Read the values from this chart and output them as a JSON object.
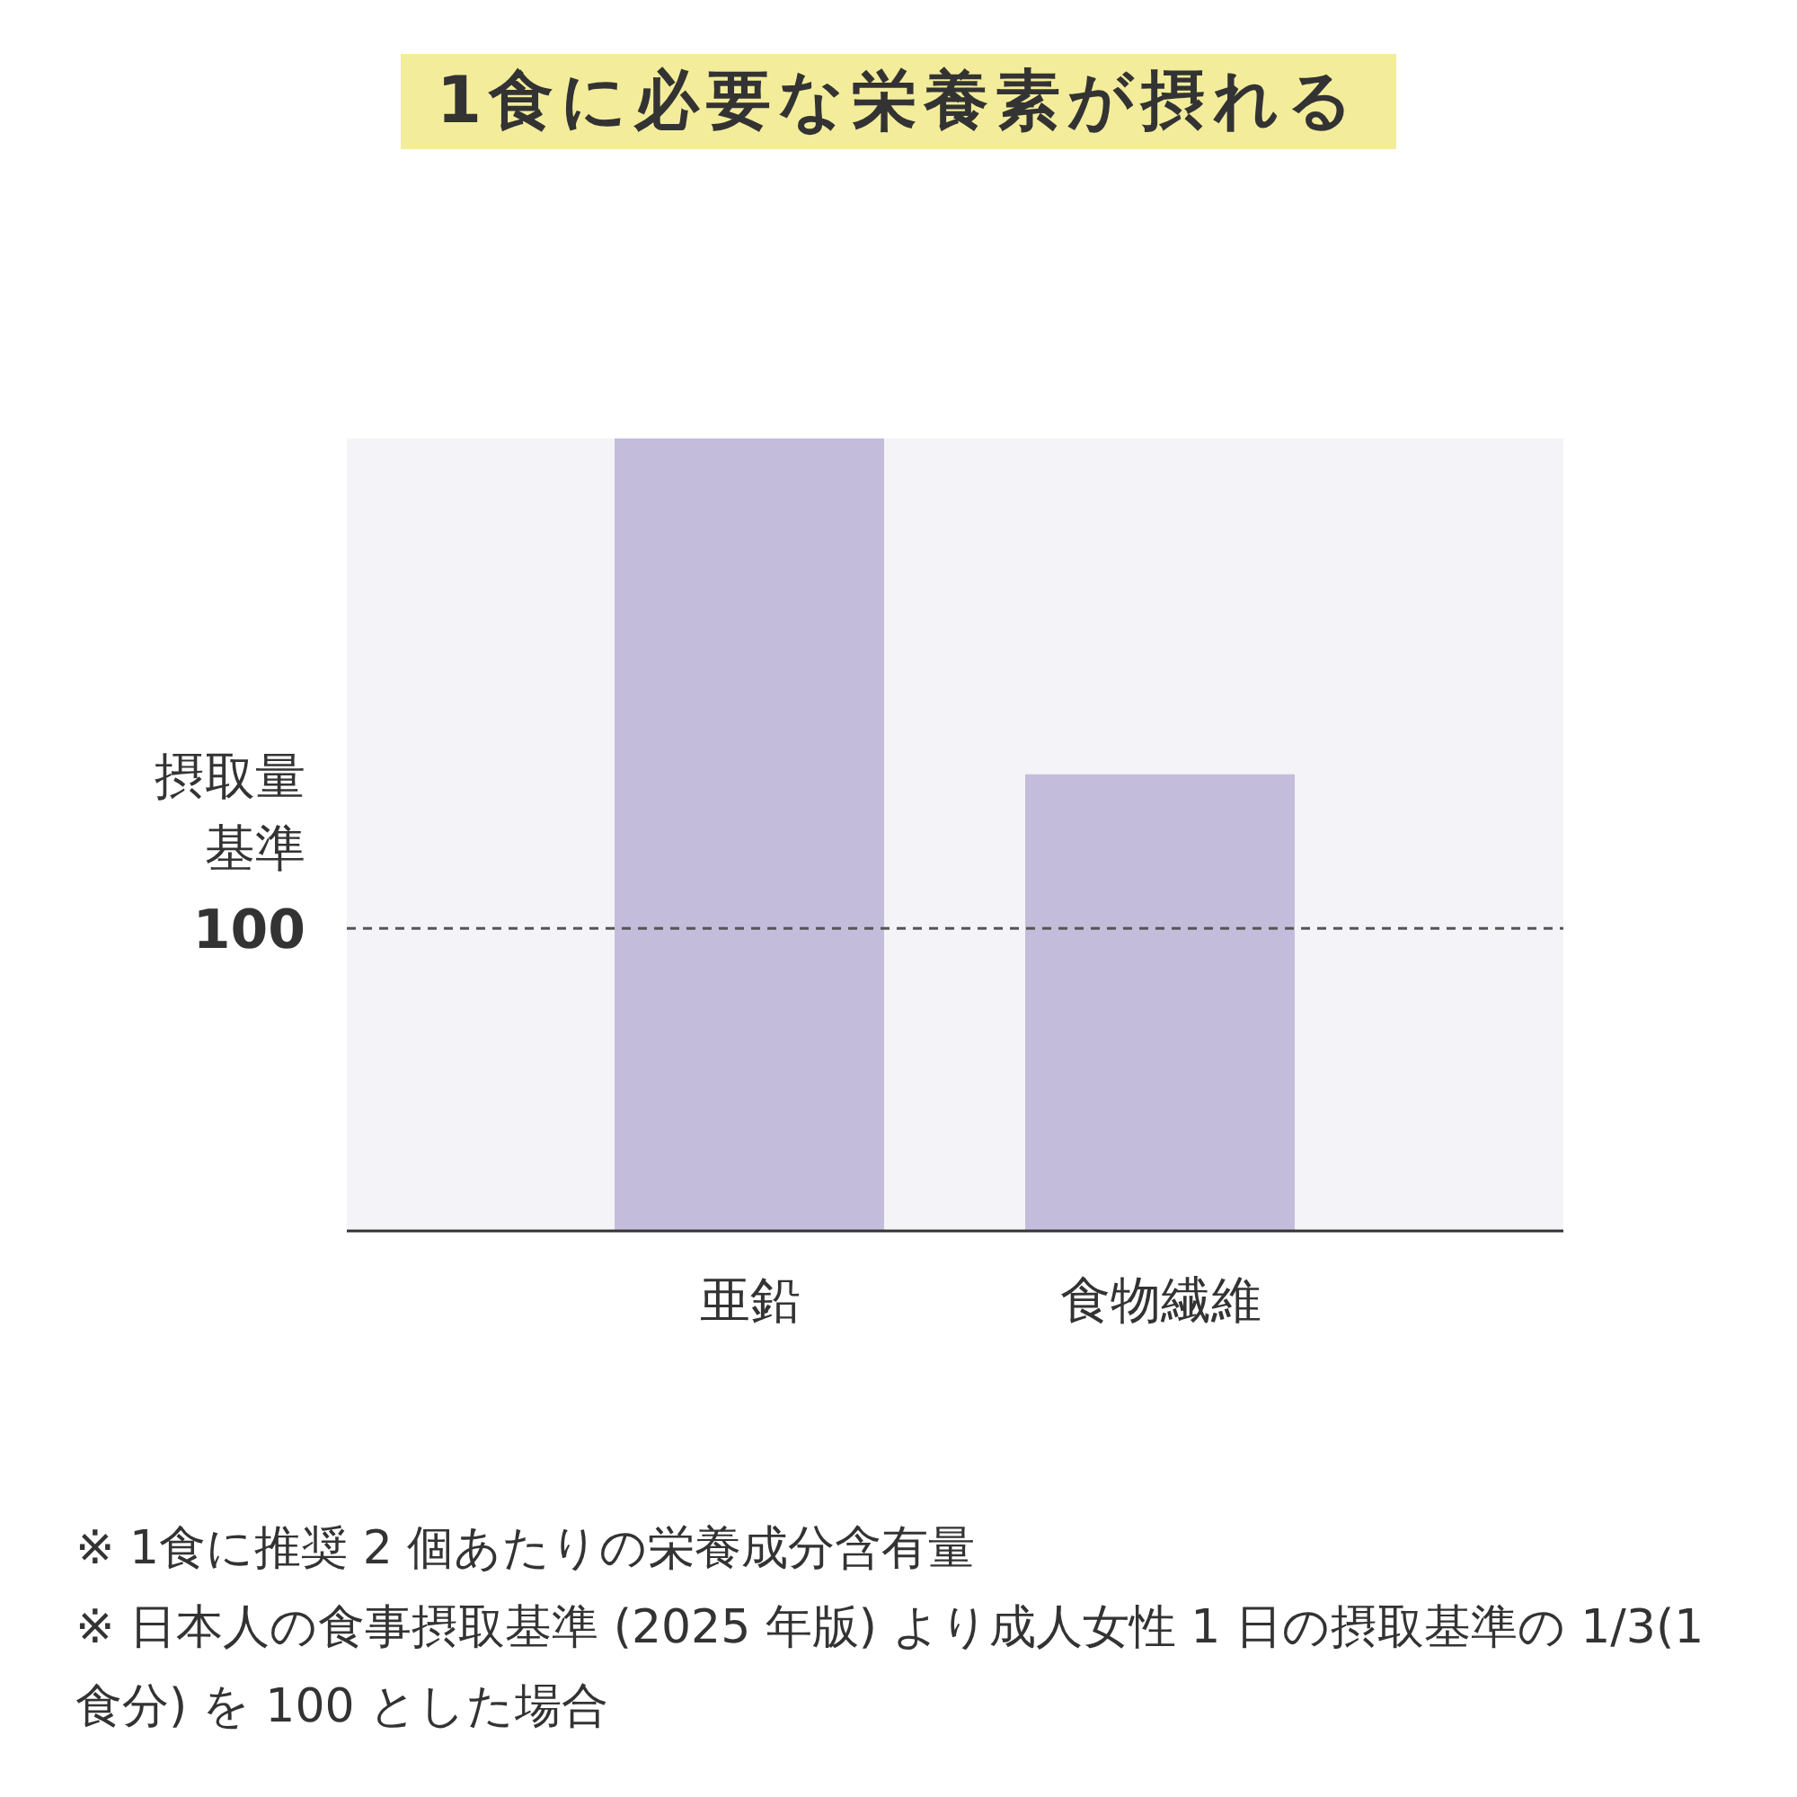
{
  "chart_data": {
    "type": "bar",
    "title": "1食に必要な栄養素が摂れる",
    "ylabel": "摂取量基準",
    "categories": [
      "亜鉛",
      "食物繊維"
    ],
    "values": [
      262,
      151
    ],
    "color": "#c3bddb",
    "ylim": [
      0,
      262
    ],
    "yticks": [
      100
    ],
    "ref_lines": [
      {
        "axis": "y",
        "value": 100,
        "line_style": "dashed",
        "color": "#555555"
      }
    ],
    "annotations": [
      "※ 1食に推奨 2 個あたりの栄養成分含有量",
      "※ 日本人の食事摂取基準 (2025 年版) より成人女性 1 日の摂取基準の 1/3(1 食分) を 100 とした場合"
    ]
  }
}
